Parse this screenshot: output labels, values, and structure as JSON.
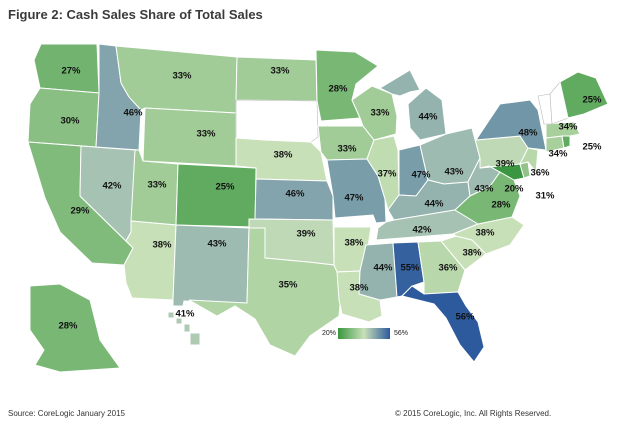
{
  "title": "Figure 2: Cash Sales Share of Total Sales",
  "source": "Source: CoreLogic January 2015",
  "copyright": "© 2015 CoreLogic, Inc. All Rights Reserved.",
  "legend": {
    "min_label": "20%",
    "max_label": "56%",
    "color_min": "#3a9640",
    "color_mid": "#c8e0b8",
    "color_max": "#2c5a9c"
  },
  "colors": {
    "no_data": "#ffffff",
    "border": "#ffffff"
  },
  "states": {
    "WA": "27%",
    "OR": "30%",
    "CA": "29%",
    "NV": "42%",
    "ID": "46%",
    "MT": "33%",
    "WY": "33%",
    "UT": "33%",
    "AZ": "38%",
    "CO": "25%",
    "NM": "43%",
    "ND": "33%",
    "SD": "",
    "NE": "38%",
    "KS": "46%",
    "OK": "39%",
    "TX": "35%",
    "MN": "28%",
    "IA": "33%",
    "MO": "47%",
    "AR": "38%",
    "LA": "38%",
    "WI": "33%",
    "IL": "37%",
    "MI": "44%",
    "IN": "47%",
    "OH": "43%",
    "KY": "44%",
    "TN": "42%",
    "MS": "44%",
    "AL": "55%",
    "GA": "36%",
    "FL": "56%",
    "SC": "38%",
    "NC": "38%",
    "VA": "28%",
    "WV": "43%",
    "PA": "39%",
    "NY": "48%",
    "MD": "20%",
    "DE": "31%",
    "NJ": "36%",
    "CT": "34%",
    "RI": "25%",
    "MA": "34%",
    "ME": "25%",
    "AK": "28%",
    "HI": "41%"
  }
}
